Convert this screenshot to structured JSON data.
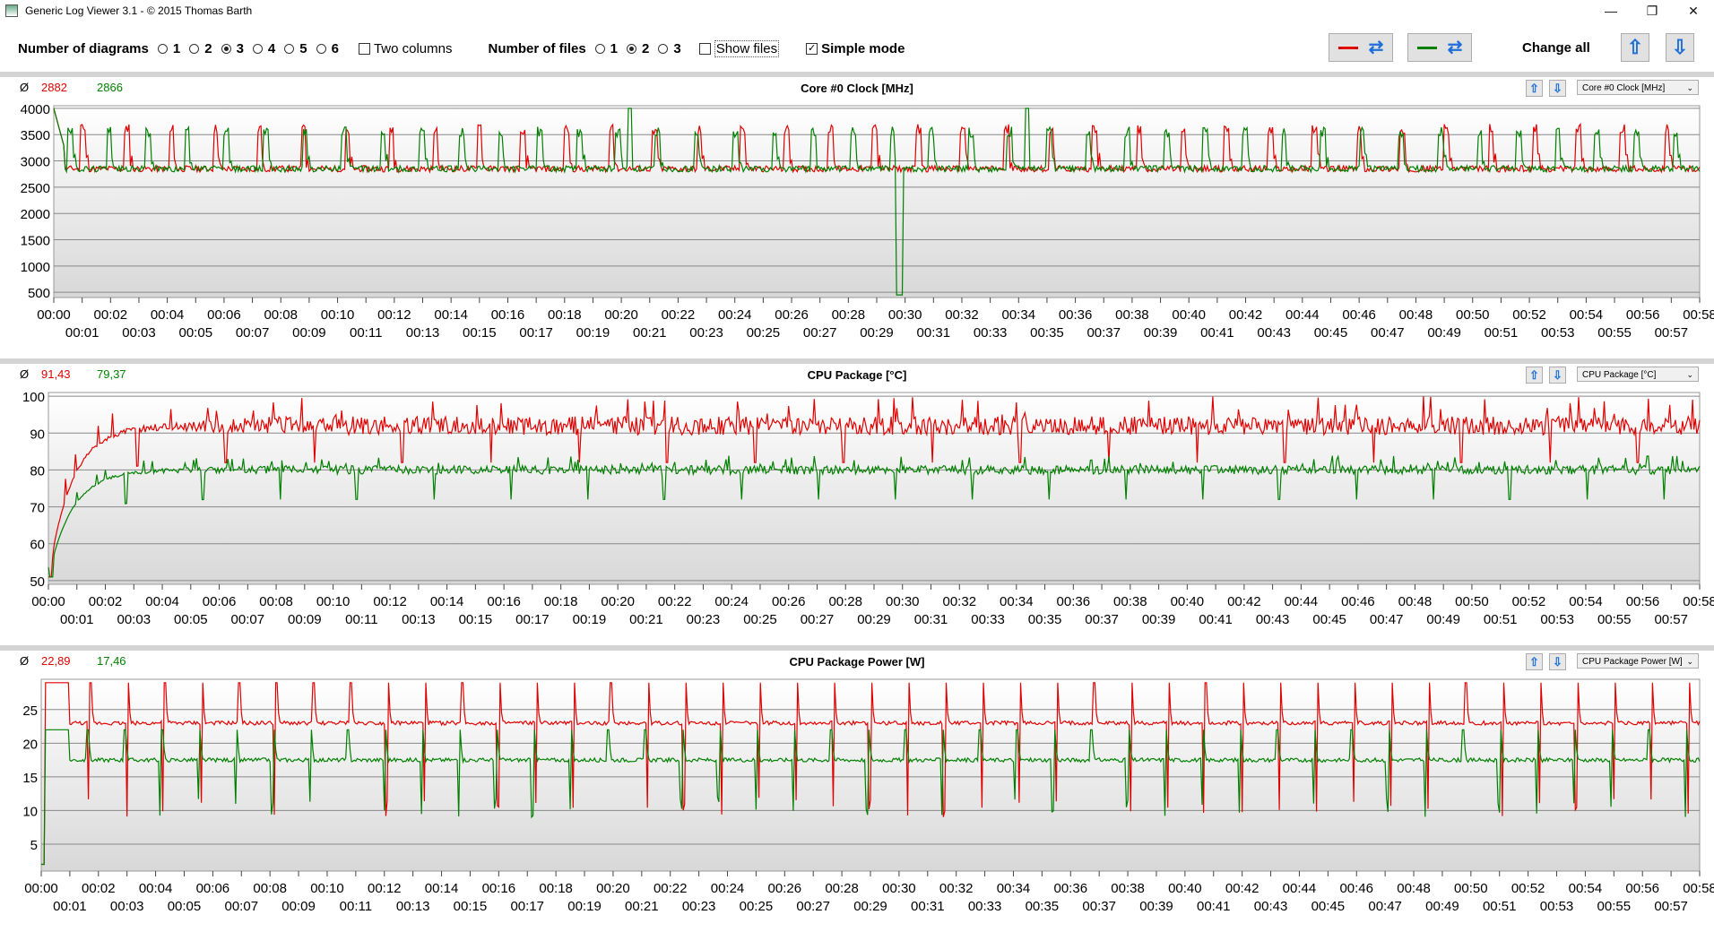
{
  "window": {
    "title": "Generic Log Viewer 3.1 - © 2015 Thomas Barth",
    "minimize": "—",
    "maximize": "❐",
    "close": "✕"
  },
  "toolbar": {
    "diagrams_label": "Number of diagrams",
    "diagram_options": [
      "1",
      "2",
      "3",
      "4",
      "5",
      "6"
    ],
    "diagrams_selected": "3",
    "two_columns_label": "Two columns",
    "two_columns_checked": false,
    "files_label": "Number of files",
    "file_options": [
      "1",
      "2",
      "3"
    ],
    "files_selected": "2",
    "show_files_label": "Show files",
    "show_files_checked": false,
    "simple_mode_label": "Simple mode",
    "simple_mode_checked": true,
    "change_all_label": "Change all",
    "file1_color": "#e00000",
    "file2_color": "#008000",
    "swap_icon": "refresh-arrows-icon",
    "up_icon": "arrow-up-icon",
    "down_icon": "arrow-down-icon"
  },
  "panels": [
    {
      "avg_symbol": "Ø",
      "avg_red": "2882",
      "avg_green": "2866",
      "title": "Core #0 Clock [MHz]",
      "select_value": "Core #0 Clock [MHz]"
    },
    {
      "avg_symbol": "Ø",
      "avg_red": "91,43",
      "avg_green": "79,37",
      "title": "CPU Package [°C]",
      "select_value": "CPU Package [°C]"
    },
    {
      "avg_symbol": "Ø",
      "avg_red": "22,89",
      "avg_green": "17,46",
      "title": "CPU Package Power [W]",
      "select_value": "CPU Package Power [W]"
    }
  ],
  "chart_data": [
    {
      "type": "line",
      "title": "Core #0 Clock [MHz]",
      "x_unit": "mm:ss",
      "x_range": [
        "00:00",
        "00:58"
      ],
      "x_ticks_top": [
        "00:00",
        "00:02",
        "00:04",
        "00:06",
        "00:08",
        "00:10",
        "00:12",
        "00:14",
        "00:16",
        "00:18",
        "00:20",
        "00:22",
        "00:24",
        "00:26",
        "00:28",
        "00:30",
        "00:32",
        "00:34",
        "00:36",
        "00:38",
        "00:40",
        "00:42",
        "00:44",
        "00:46",
        "00:48",
        "00:50",
        "00:52",
        "00:54",
        "00:56",
        "00:58"
      ],
      "x_ticks_bottom": [
        "00:01",
        "00:03",
        "00:05",
        "00:07",
        "00:09",
        "00:11",
        "00:13",
        "00:15",
        "00:17",
        "00:19",
        "00:21",
        "00:23",
        "00:25",
        "00:27",
        "00:29",
        "00:31",
        "00:33",
        "00:35",
        "00:37",
        "00:39",
        "00:41",
        "00:43",
        "00:45",
        "00:47",
        "00:49",
        "00:51",
        "00:53",
        "00:55",
        "00:57"
      ],
      "y_ticks": [
        500,
        1000,
        1500,
        2000,
        2500,
        3000,
        3500,
        4000
      ],
      "ylim": [
        400,
        4050
      ],
      "grid": true,
      "series": [
        {
          "color": "#e00000",
          "baseline": 2850,
          "spike": 3700,
          "period": 1.55,
          "phase": 0.6,
          "dips": []
        },
        {
          "color": "#008000",
          "baseline": 2850,
          "spike": 3650,
          "period": 1.38,
          "phase": 0.9,
          "dips": [
            [
              29.8,
              450
            ]
          ],
          "peaks": [
            [
              20.3,
              4000
            ],
            [
              34.3,
              4000
            ]
          ]
        }
      ]
    },
    {
      "type": "line",
      "title": "CPU Package [°C]",
      "x_unit": "mm:ss",
      "x_range": [
        "00:00",
        "00:58"
      ],
      "x_ticks_top": [
        "00:00",
        "00:02",
        "00:04",
        "00:06",
        "00:08",
        "00:10",
        "00:12",
        "00:14",
        "00:16",
        "00:18",
        "00:20",
        "00:22",
        "00:24",
        "00:26",
        "00:28",
        "00:30",
        "00:32",
        "00:34",
        "00:36",
        "00:38",
        "00:40",
        "00:42",
        "00:44",
        "00:46",
        "00:48",
        "00:50",
        "00:52",
        "00:54",
        "00:56",
        "00:58"
      ],
      "x_ticks_bottom": [
        "00:01",
        "00:03",
        "00:05",
        "00:07",
        "00:09",
        "00:11",
        "00:13",
        "00:15",
        "00:17",
        "00:19",
        "00:21",
        "00:23",
        "00:25",
        "00:27",
        "00:29",
        "00:31",
        "00:33",
        "00:35",
        "00:37",
        "00:39",
        "00:41",
        "00:43",
        "00:45",
        "00:47",
        "00:49",
        "00:51",
        "00:53",
        "00:55",
        "00:57"
      ],
      "y_ticks": [
        50,
        60,
        70,
        80,
        90,
        100
      ],
      "ylim": [
        49,
        101
      ],
      "grid": true,
      "series": [
        {
          "color": "#e00000",
          "start": 51,
          "plateau": 92,
          "noise": 2.5,
          "dip_every": 3.1,
          "dip_depth": 10
        },
        {
          "color": "#008000",
          "start": 51,
          "plateau": 80,
          "noise": 1.2,
          "dip_every": 2.7,
          "dip_depth": 8
        }
      ]
    },
    {
      "type": "line",
      "title": "CPU Package Power [W]",
      "x_unit": "mm:ss",
      "x_range": [
        "00:00",
        "00:58"
      ],
      "x_ticks_top": [
        "00:00",
        "00:02",
        "00:04",
        "00:06",
        "00:08",
        "00:10",
        "00:12",
        "00:14",
        "00:16",
        "00:18",
        "00:20",
        "00:22",
        "00:24",
        "00:26",
        "00:28",
        "00:30",
        "00:32",
        "00:34",
        "00:36",
        "00:38",
        "00:40",
        "00:42",
        "00:44",
        "00:46",
        "00:48",
        "00:50",
        "00:52",
        "00:54",
        "00:56",
        "00:58"
      ],
      "x_ticks_bottom": [
        "00:01",
        "00:03",
        "00:05",
        "00:07",
        "00:09",
        "00:11",
        "00:13",
        "00:15",
        "00:17",
        "00:19",
        "00:21",
        "00:23",
        "00:25",
        "00:27",
        "00:29",
        "00:31",
        "00:33",
        "00:35",
        "00:37",
        "00:39",
        "00:41",
        "00:43",
        "00:45",
        "00:47",
        "00:49",
        "00:51",
        "00:53",
        "00:55",
        "00:57"
      ],
      "y_ticks": [
        5,
        10,
        15,
        20,
        25
      ],
      "ylim": [
        1,
        29.5
      ],
      "grid": true,
      "series": [
        {
          "color": "#e00000",
          "baseline": 23,
          "spike": 29,
          "period": 1.3,
          "phase": 0.9,
          "dip": 9
        },
        {
          "color": "#008000",
          "baseline": 17.5,
          "spike": 22,
          "period": 1.3,
          "phase": 1.0,
          "dip": 9
        }
      ]
    }
  ]
}
